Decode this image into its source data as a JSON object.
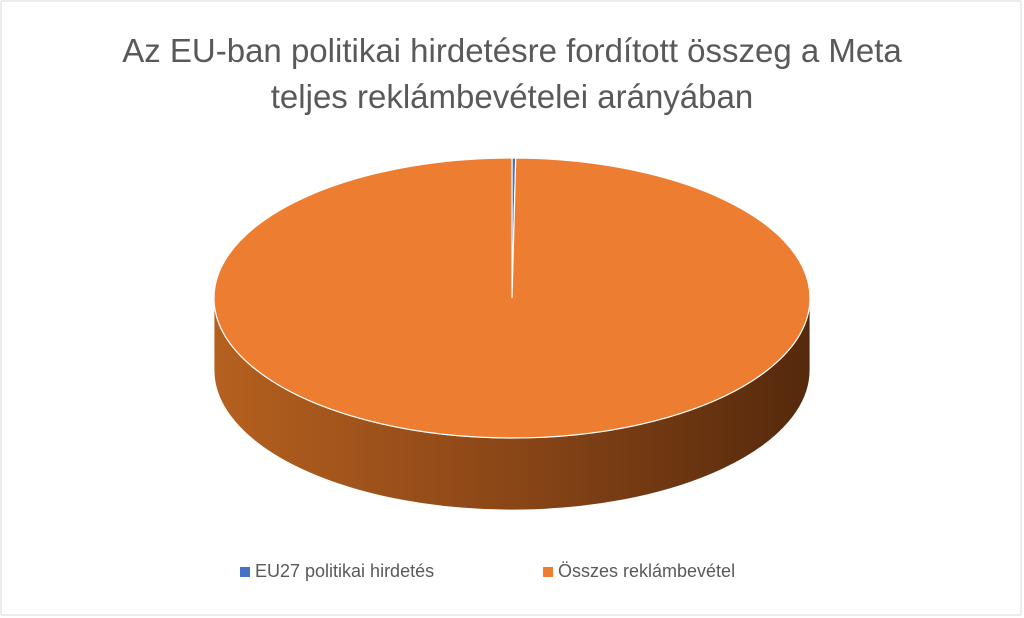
{
  "chart_data": {
    "type": "pie3d",
    "title": "Az EU-ban politikai hirdetésre fordított összeg a Meta teljes reklámbevételei arányában",
    "categories": [
      "EU27 politikai hirdetés",
      "Összes reklámbevétel"
    ],
    "values": [
      0.2,
      99.8
    ],
    "colors": [
      "#4472c4",
      "#ed7d31"
    ],
    "legend": "bottom"
  }
}
